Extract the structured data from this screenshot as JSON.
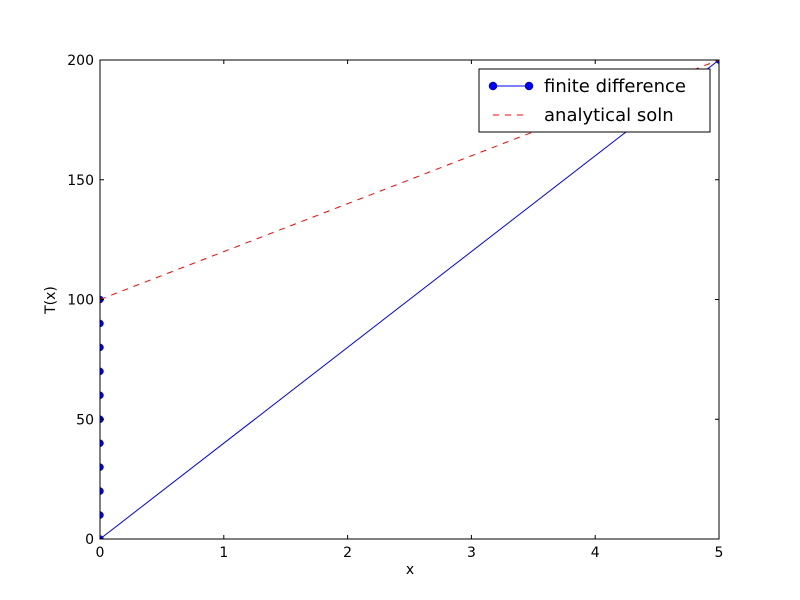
{
  "chart_data": {
    "type": "line",
    "title": "",
    "xlabel": "x",
    "ylabel": "T(x)",
    "xlim": [
      0,
      5
    ],
    "ylim": [
      0,
      200
    ],
    "xticks": [
      0,
      1,
      2,
      3,
      4,
      5
    ],
    "xtick_labels": [
      "0",
      "1",
      "2",
      "3",
      "4",
      "5"
    ],
    "yticks": [
      0,
      50,
      100,
      150,
      200
    ],
    "ytick_labels": [
      "0",
      "50",
      "100",
      "150",
      "200"
    ],
    "grid": false,
    "legend_position": "top-right",
    "series": [
      {
        "name": "finite difference",
        "color": "#0000ff",
        "style": "solid-with-circle-markers",
        "x": [
          0,
          0,
          0,
          0,
          0,
          0,
          0,
          0,
          0,
          0,
          0,
          5
        ],
        "y": [
          100,
          90,
          80,
          70,
          60,
          50,
          40,
          30,
          20,
          10,
          0,
          200
        ]
      },
      {
        "name": "analytical soln",
        "color": "#ff0000",
        "style": "dashed",
        "x": [
          0,
          5
        ],
        "y": [
          100,
          200
        ]
      }
    ]
  }
}
